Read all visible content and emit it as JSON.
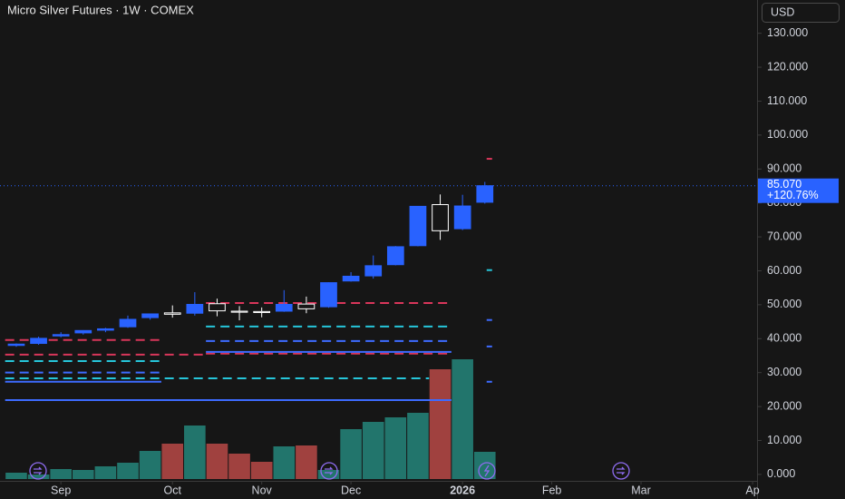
{
  "chart_data": {
    "type": "candlestick",
    "title": "Micro Silver Futures · 1W · COMEX",
    "currency": "USD",
    "x": [
      0,
      1,
      2,
      3,
      4,
      5,
      6,
      7,
      8,
      9,
      10,
      11,
      12,
      13,
      14,
      15,
      16,
      17,
      18,
      19,
      20,
      21
    ],
    "open": [
      38.0,
      38.6,
      40.8,
      41.7,
      42.5,
      43.5,
      46.2,
      47.6,
      47.5,
      50.3,
      48.1,
      48.0,
      48.1,
      50.2,
      49.4,
      57.0,
      58.5,
      61.8,
      67.4,
      79.5,
      72.4,
      80.2
    ],
    "high": [
      38.6,
      40.6,
      41.9,
      42.5,
      43.2,
      46.8,
      47.4,
      49.8,
      53.7,
      51.8,
      49.6,
      49.2,
      54.3,
      52.4,
      56.6,
      59.6,
      64.5,
      67.3,
      79.1,
      82.5,
      82.4,
      86.2
    ],
    "low": [
      37.6,
      38.2,
      40.4,
      41.2,
      41.9,
      43.2,
      45.6,
      46.2,
      46.8,
      46.6,
      45.4,
      46.3,
      47.9,
      47.5,
      49.1,
      56.8,
      57.7,
      61.6,
      67.2,
      69.1,
      72.0,
      79.8
    ],
    "close": [
      38.4,
      40.1,
      41.2,
      42.4,
      42.9,
      45.7,
      47.3,
      47.2,
      50.1,
      48.2,
      47.8,
      47.7,
      50.1,
      48.8,
      56.5,
      58.4,
      61.5,
      67.1,
      79.0,
      71.8,
      79.1,
      85.07
    ],
    "volume": [
      7,
      5,
      11,
      10,
      14,
      18,
      31,
      39,
      59,
      39,
      28,
      19,
      36,
      37,
      10,
      55,
      63,
      68,
      73,
      121,
      132,
      30
    ],
    "up_color": "#2962ff",
    "down_color": "#ffffff",
    "volume_up_color": "#22756c",
    "volume_down_color": "#a0413f",
    "xlim": [
      -0.73,
      33.2
    ],
    "xticks": [
      {
        "value": 2,
        "label": "Sep"
      },
      {
        "value": 7,
        "label": "Oct"
      },
      {
        "value": 11,
        "label": "Nov"
      },
      {
        "value": 15,
        "label": "Dec"
      },
      {
        "value": 20,
        "label": "2026"
      },
      {
        "value": 24,
        "label": "Feb"
      },
      {
        "value": 28,
        "label": "Mar"
      },
      {
        "value": 33,
        "label": "Ap"
      }
    ],
    "ylim": [
      -1.9,
      139.8
    ],
    "yticks": [
      {
        "value": 0,
        "label": "0.000"
      },
      {
        "value": 10,
        "label": "10.000"
      },
      {
        "value": 20,
        "label": "20.000"
      },
      {
        "value": 30,
        "label": "30.000"
      },
      {
        "value": 40,
        "label": "40.000"
      },
      {
        "value": 50,
        "label": "50.000"
      },
      {
        "value": 60,
        "label": "60.000"
      },
      {
        "value": 70,
        "label": "70.000"
      },
      {
        "value": 80,
        "label": "80.000"
      },
      {
        "value": 90,
        "label": "90.000"
      },
      {
        "value": 100,
        "label": "100.000"
      },
      {
        "value": 110,
        "label": "110.000"
      },
      {
        "value": 120,
        "label": "120.000"
      },
      {
        "value": 130,
        "label": "130.000"
      }
    ],
    "last_price": {
      "value": 85.07,
      "label": "85.070"
    },
    "change_label": "+120.76%",
    "levels": [
      {
        "value": 39.6,
        "color": "#d9365a",
        "dashed": true,
        "from": 0,
        "to": 6
      },
      {
        "value": 35.3,
        "color": "#d9365a",
        "dashed": true,
        "from": 0,
        "to": 8
      },
      {
        "value": 33.4,
        "color": "#26c6da",
        "dashed": true,
        "from": 0,
        "to": 6
      },
      {
        "value": 30.0,
        "color": "#3d6bff",
        "dashed": true,
        "from": 0,
        "to": 6
      },
      {
        "value": 28.3,
        "color": "#26c6da",
        "dashed": true,
        "from": 0,
        "to": 18
      },
      {
        "value": 27.3,
        "color": "#3d6bff",
        "dashed": false,
        "from": 0,
        "to": 6
      },
      {
        "value": 21.9,
        "color": "#3d6bff",
        "dashed": false,
        "from": 0,
        "to": 19
      },
      {
        "value": 50.5,
        "color": "#d9365a",
        "dashed": true,
        "from": 9,
        "to": 19
      },
      {
        "value": 43.6,
        "color": "#26c6da",
        "dashed": true,
        "from": 9,
        "to": 19
      },
      {
        "value": 39.3,
        "color": "#3d6bff",
        "dashed": true,
        "from": 9,
        "to": 19
      },
      {
        "value": 35.6,
        "color": "#d9365a",
        "dashed": true,
        "from": 9,
        "to": 19
      },
      {
        "value": 36.1,
        "color": "#3d6bff",
        "dashed": false,
        "from": 9,
        "to": 19
      },
      {
        "value": 93.0,
        "color": "#d9365a",
        "dashed": true,
        "from": 21,
        "to": 21
      },
      {
        "value": 60.2,
        "color": "#26c6da",
        "dashed": true,
        "from": 21,
        "to": 21
      },
      {
        "value": 45.5,
        "color": "#3d6bff",
        "dashed": true,
        "from": 21,
        "to": 21
      },
      {
        "value": 37.7,
        "color": "#3d6bff",
        "dashed": true,
        "from": 21,
        "to": 21
      },
      {
        "value": 27.3,
        "color": "#3d6bff",
        "dashed": true,
        "from": 21,
        "to": 21
      }
    ]
  }
}
